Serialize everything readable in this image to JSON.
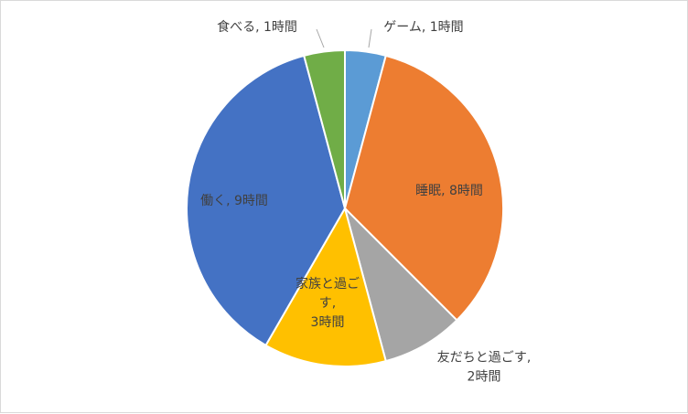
{
  "chart_data": {
    "type": "pie",
    "title": "",
    "slices": [
      {
        "label": "ゲーム, 1時間",
        "category": "ゲーム",
        "value": 1,
        "color": "#5b9bd5"
      },
      {
        "label": "睡眠, 8時間",
        "category": "睡眠",
        "value": 8,
        "color": "#ed7d31"
      },
      {
        "label": "友だちと過ごす, 2時間",
        "category": "友だちと過ごす",
        "value": 2,
        "color": "#a5a5a5"
      },
      {
        "label": "家族と過ごす, 3時間",
        "category": "家族と過ごす",
        "value": 3,
        "color": "#ffc000"
      },
      {
        "label": "働く, 9時間",
        "category": "働く",
        "value": 9,
        "color": "#4472c4"
      },
      {
        "label": "食べる, 1時間",
        "category": "食べる",
        "value": 1,
        "color": "#70ad47"
      }
    ],
    "legend": "none",
    "data_labels": "category, value"
  }
}
